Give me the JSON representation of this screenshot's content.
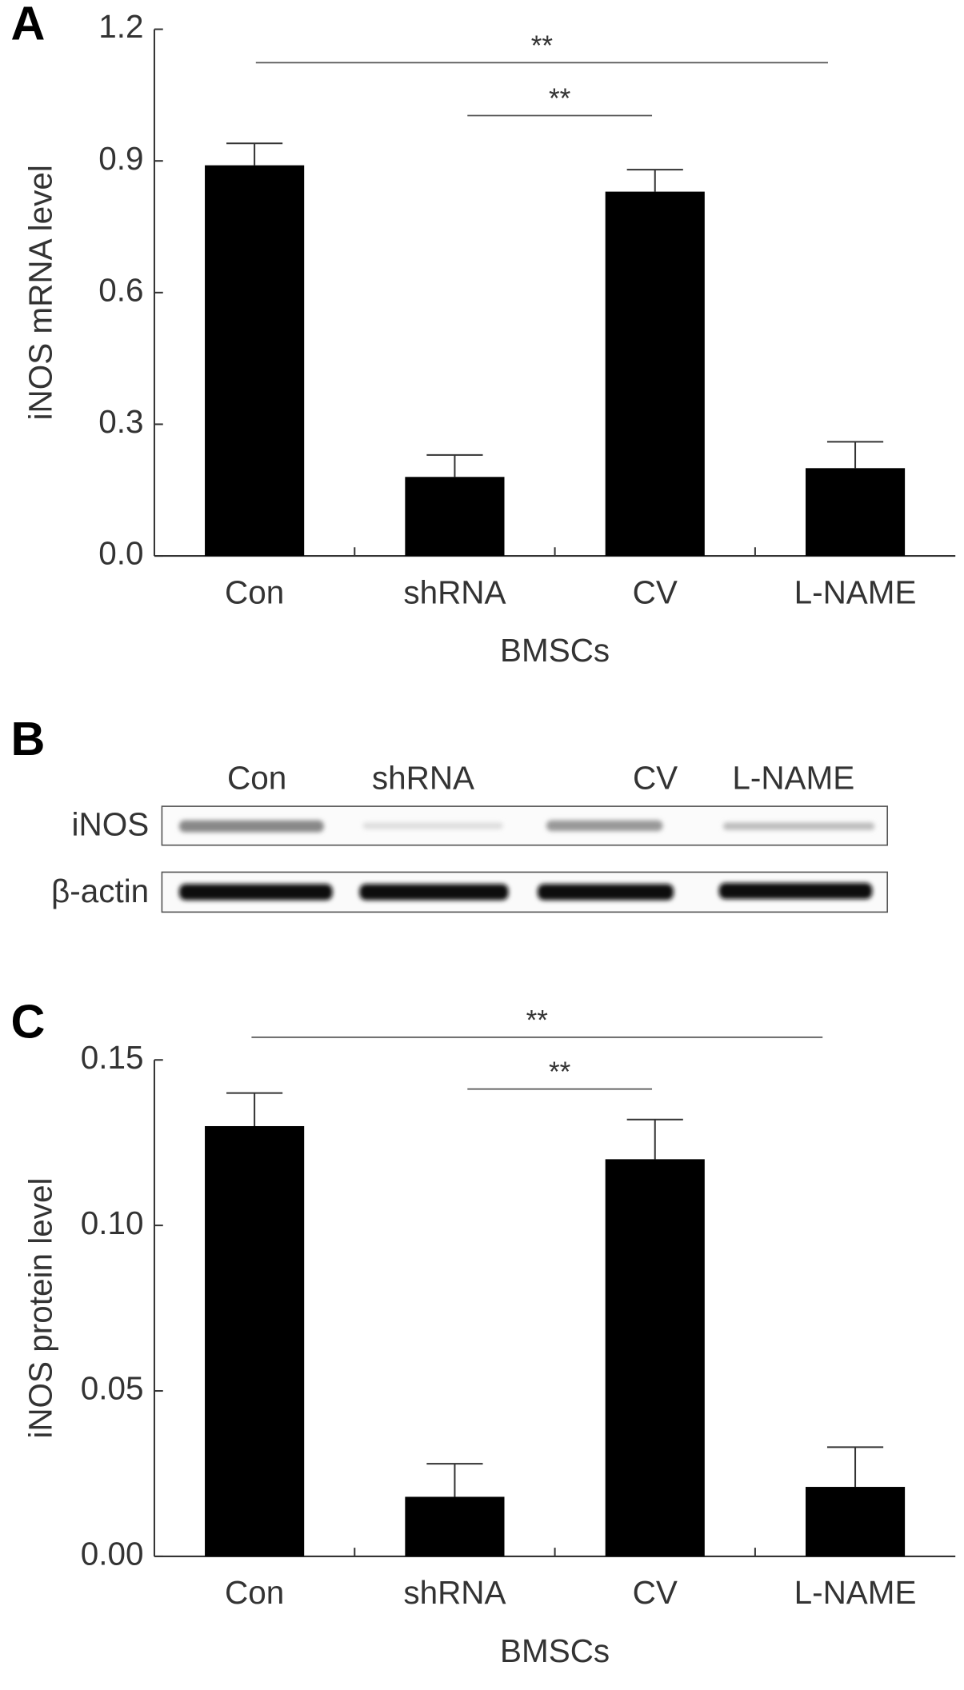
{
  "chart_data": [
    {
      "type": "bar",
      "panel_label": "A",
      "ylabel": "iNOS mRNA level",
      "xlabel": "BMSCs",
      "categories": [
        "Con",
        "shRNA",
        "CV",
        "L-NAME"
      ],
      "values": [
        0.89,
        0.18,
        0.83,
        0.2
      ],
      "errors": [
        0.05,
        0.05,
        0.05,
        0.06
      ],
      "color": "#000000",
      "ylim": [
        0,
        1.2
      ],
      "yticks": [
        {
          "value": 0,
          "label": "0.0"
        },
        0.3,
        0.6,
        0.9,
        1.2
      ],
      "annotations": [
        "**",
        "**"
      ]
    },
    {
      "type": "bar",
      "panel_label": "C",
      "ylabel": "iNOS protein level",
      "xlabel": "BMSCs",
      "categories": [
        "Con",
        "shRNA",
        "CV",
        "L-NAME"
      ],
      "values": [
        0.13,
        0.018,
        0.12,
        0.021
      ],
      "errors": [
        0.01,
        0.01,
        0.012,
        0.012
      ],
      "color": "#000000",
      "ylim": [
        0,
        0.15
      ],
      "yticks": [
        {
          "value": 0,
          "label": "0.00"
        },
        0.05,
        {
          "value": 0.1,
          "label": "0.10"
        },
        0.15
      ],
      "annotations": [
        "**",
        "**"
      ]
    }
  ],
  "blot": {
    "panel_label": "B",
    "lanes": [
      "Con",
      "shRNA",
      "CV",
      "L-NAME"
    ],
    "rows": [
      "iNOS",
      "β-actin"
    ]
  }
}
